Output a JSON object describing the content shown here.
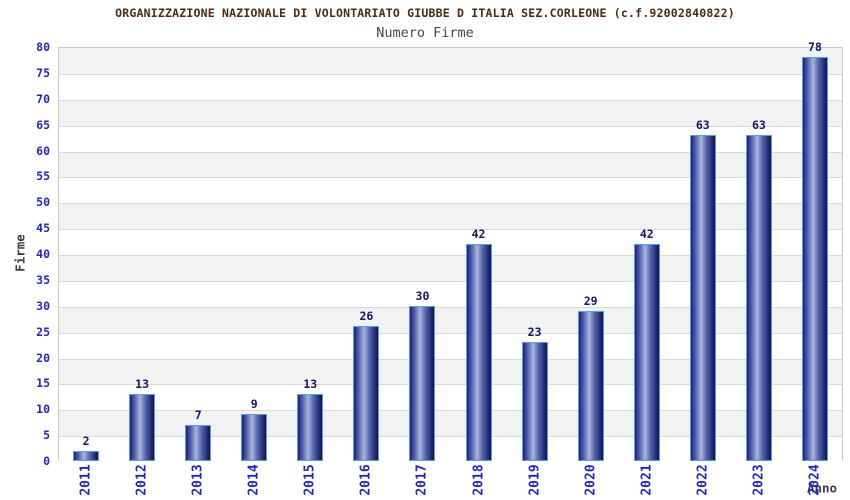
{
  "chart_data": {
    "type": "bar",
    "title": "ORGANIZZAZIONE NAZIONALE DI VOLONTARIATO GIUBBE D ITALIA SEZ.CORLEONE (c.f.92002840822)",
    "subtitle": "Numero Firme",
    "xlabel": "Anno",
    "ylabel": "Firme",
    "categories": [
      "2011",
      "2012",
      "2013",
      "2014",
      "2015",
      "2016",
      "2017",
      "2018",
      "2019",
      "2020",
      "2021",
      "2022",
      "2023",
      "2024"
    ],
    "values": [
      2,
      13,
      7,
      9,
      13,
      26,
      30,
      42,
      23,
      29,
      42,
      63,
      63,
      78
    ],
    "ylim": [
      0,
      80
    ],
    "ytick_step": 5,
    "grid": "horizontal-bands-alternating",
    "legend": "none",
    "bar_style": "cylinder-gradient",
    "colors": {
      "title": "#4d2a0d",
      "subtitle": "#474747",
      "axis_label": "#3a3a3a",
      "tick_text": "#2323cd",
      "value_label": "#14146e",
      "band_gray": "#f2f2f2",
      "band_white": "#ffffff",
      "gridline": "#d9d9d9",
      "plot_border": "#c9c9c9",
      "bar_outline": "#56a0e8",
      "bar_dark": "#1d1d78",
      "bar_mid": "#5365ad",
      "bar_light": "#a6b4de",
      "bar_darkest": "#101055",
      "background": "#ffffff"
    }
  }
}
